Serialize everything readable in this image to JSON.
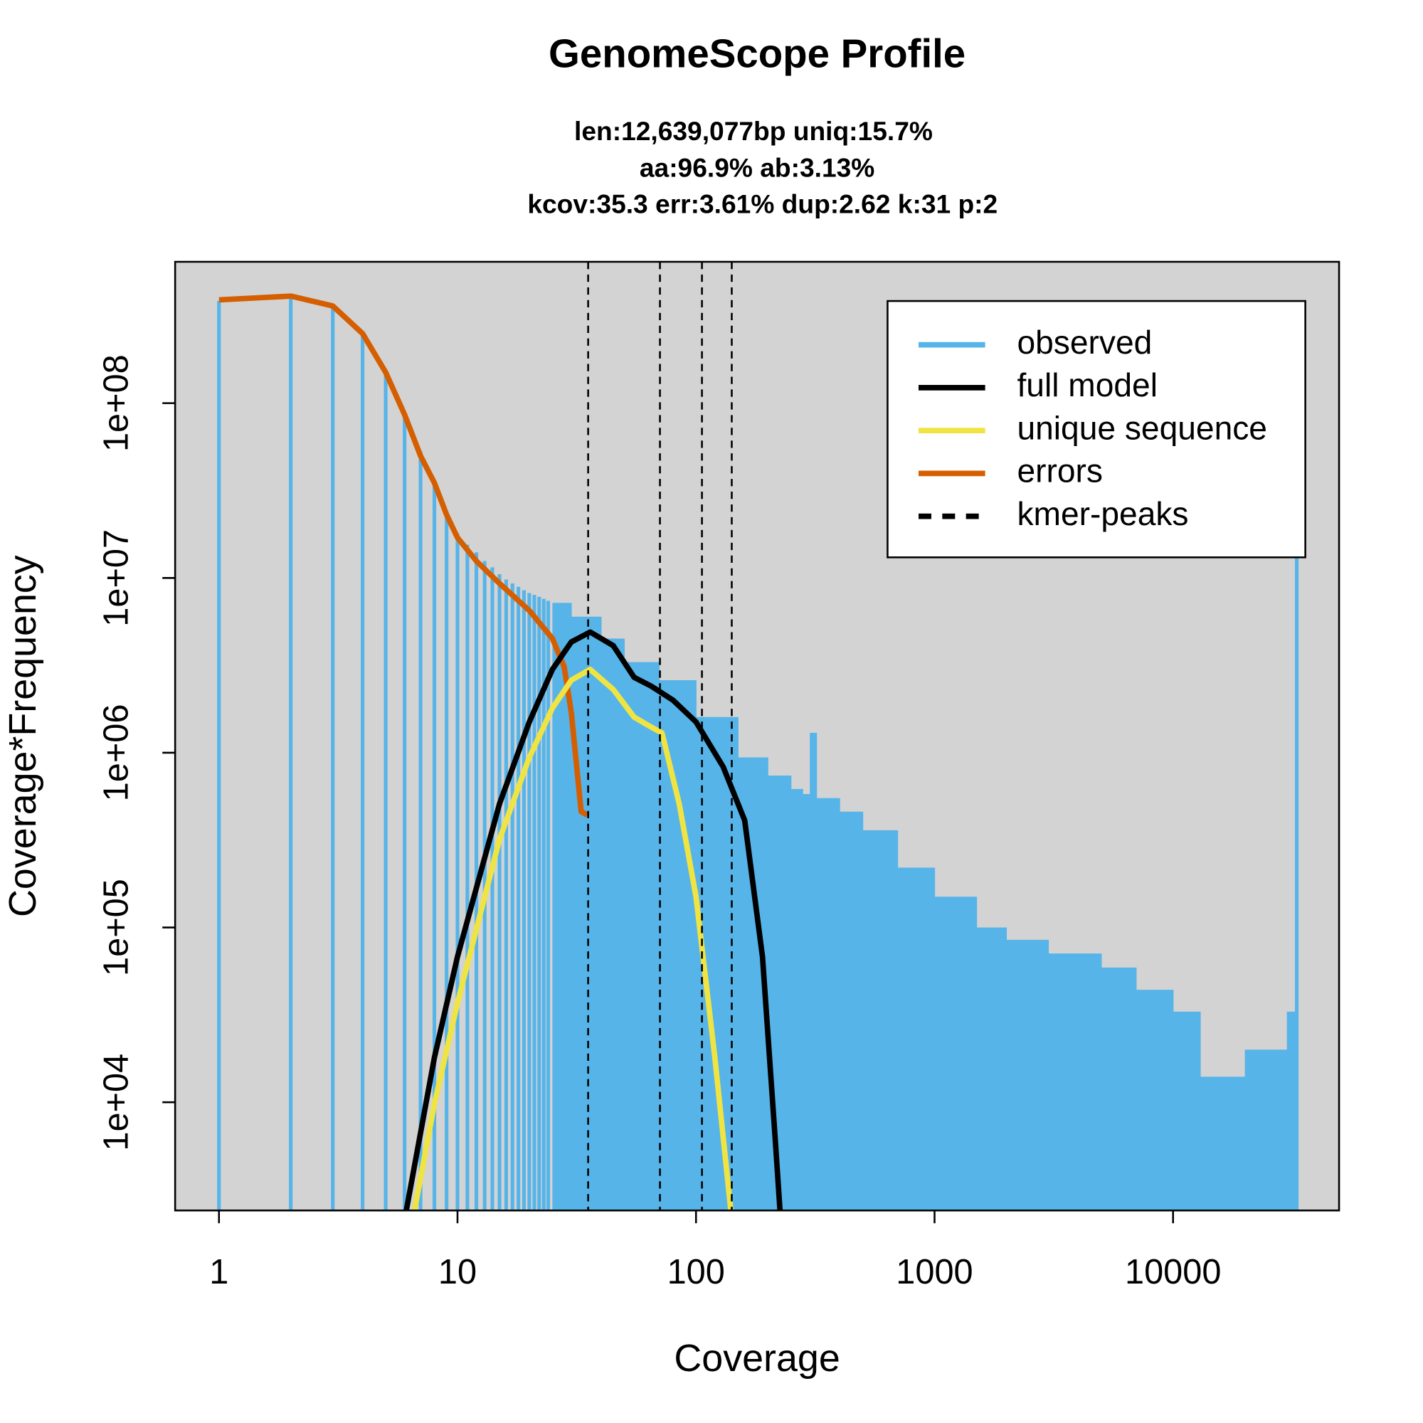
{
  "chart_data": {
    "type": "line",
    "title": "GenomeScope Profile",
    "subtitle": [
      "len:12,639,077bp uniq:15.7%",
      "aa:96.9% ab:3.13%",
      "kcov:35.3 err:3.61%  dup:2.62  k:31 p:2"
    ],
    "xlabel": "Coverage",
    "ylabel": "Coverage*Frequency",
    "xscale": "log",
    "yscale": "log",
    "xlim": [
      0.655,
      49660
    ],
    "ylim": [
      2404,
      644000000
    ],
    "xticks": [
      1,
      10,
      100,
      1000,
      10000
    ],
    "yticks": [
      {
        "value": 10000,
        "label": "1e+04"
      },
      {
        "value": 100000,
        "label": "1e+05"
      },
      {
        "value": 1000000,
        "label": "1e+06"
      },
      {
        "value": 10000000,
        "label": "1e+07"
      },
      {
        "value": 100000000,
        "label": "1e+08"
      }
    ],
    "legend": "topright",
    "background": "#d3d3d3",
    "series": [
      {
        "name": "observed",
        "color": "#56B4E9",
        "kind": "bar",
        "x": [
          1,
          2,
          3,
          4,
          5,
          6,
          7,
          8,
          9,
          10,
          11,
          12,
          13,
          14,
          15,
          16,
          17,
          18,
          19,
          20,
          21,
          22,
          23,
          24,
          25,
          30,
          40,
          50,
          70,
          100,
          150,
          200,
          250,
          280,
          300,
          320,
          400,
          500,
          700,
          1000,
          1500,
          2000,
          3000,
          5000,
          7000,
          10000,
          13000,
          20000,
          30000,
          33000
        ],
        "values": [
          385000000,
          408000000,
          353000000,
          250000000,
          150000000,
          86000000,
          53000000,
          35000000,
          23000000,
          18000000,
          15500000,
          14000000,
          12500000,
          11500000,
          10500000,
          9800000,
          9300000,
          8900000,
          8500000,
          8200000,
          8000000,
          7800000,
          7600000,
          7400000,
          7200000,
          6000000,
          4500000,
          3300000,
          2600000,
          1600000,
          940000,
          740000,
          620000,
          580000,
          1300000,
          550000,
          460000,
          360000,
          220000,
          150000,
          100000,
          85000,
          71000,
          59000,
          44000,
          33000,
          14000,
          20000,
          33000,
          13000000
        ]
      },
      {
        "name": "full model",
        "color": "#000000",
        "kind": "line",
        "x": [
          6.1,
          8,
          10,
          15,
          20,
          25,
          30,
          36,
          45,
          55,
          65,
          80,
          100,
          130,
          160,
          190,
          215,
          225
        ],
        "values": [
          2400,
          18000,
          68000,
          510000,
          1500000,
          3000000,
          4300000,
          4900000,
          4100000,
          2700000,
          2400000,
          2000000,
          1500000,
          830000,
          410000,
          68000,
          6000,
          2400
        ]
      },
      {
        "name": "unique sequence",
        "color": "#F0E442",
        "kind": "line",
        "x": [
          6.6,
          8,
          10,
          15,
          20,
          25,
          30,
          36,
          45,
          55,
          65,
          72,
          85,
          100,
          120,
          140
        ],
        "values": [
          2400,
          9800,
          37000,
          320000,
          940000,
          1800000,
          2600000,
          3000000,
          2300000,
          1600000,
          1400000,
          1300000,
          510000,
          150000,
          18000,
          2400
        ]
      },
      {
        "name": "errors",
        "color": "#D55E00",
        "kind": "line",
        "x": [
          1,
          2,
          3,
          4,
          5,
          6,
          7,
          8,
          9,
          10,
          12,
          15,
          20,
          25,
          28,
          30,
          33,
          35
        ],
        "values": [
          390000000,
          410000000,
          360000000,
          250000000,
          150000000,
          86000000,
          50000000,
          35000000,
          23000000,
          17000000,
          12500000,
          9300000,
          6500000,
          4500000,
          3100000,
          1700000,
          460000,
          440000
        ]
      }
    ],
    "peaks": {
      "name": "kmer-peaks",
      "color": "#000000",
      "x": [
        35.3,
        70.6,
        105.9,
        141.2
      ]
    }
  }
}
